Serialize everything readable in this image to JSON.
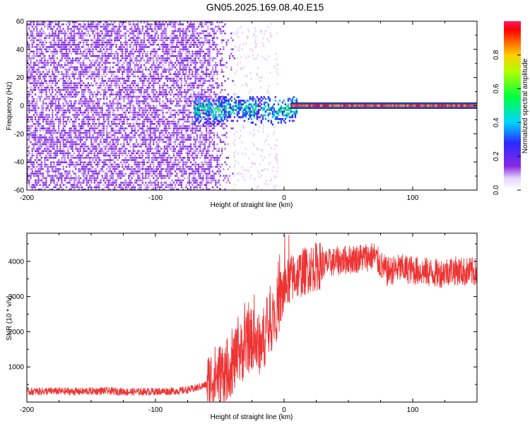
{
  "title": "GN05.2025.169.08.40.E15",
  "chart_data": [
    {
      "type": "heatmap",
      "xlabel": "Height of straight line (km)",
      "ylabel": "Frequency (Hz)",
      "xlim": [
        -200,
        150
      ],
      "ylim": [
        -60,
        60
      ],
      "xticks": [
        -200,
        -100,
        0,
        100
      ],
      "yticks": [
        -60,
        -40,
        -20,
        0,
        20,
        40,
        60
      ],
      "colorbar": {
        "label": "Normalized spectral amplitude",
        "range": [
          0.0,
          1.0
        ],
        "ticks": [
          0.0,
          0.2,
          0.4,
          0.6,
          0.8
        ]
      },
      "regions": [
        {
          "x_range": [
            -200,
            -40
          ],
          "y_range": [
            -60,
            60
          ],
          "amplitude": 0.1,
          "pattern": "scattered noise"
        },
        {
          "x_range": [
            -70,
            10
          ],
          "y_range": [
            -12,
            6
          ],
          "amplitude": 0.4,
          "pattern": "onset band"
        },
        {
          "x_range": [
            5,
            150
          ],
          "y_range": [
            -1.5,
            1.5
          ],
          "amplitude": 0.95,
          "pattern": "continuous line at 0 Hz"
        }
      ],
      "colors": {
        "low": "#7b00e6",
        "mid": "#00ff66",
        "high": "#ff0000"
      }
    },
    {
      "type": "line",
      "xlabel": "Height of straight line (km)",
      "ylabel": "SNR (10 * v/v)",
      "xlim": [
        -200,
        150
      ],
      "ylim": [
        0,
        4800
      ],
      "xticks": [
        -200,
        -100,
        0,
        100
      ],
      "yticks": [
        1000,
        2000,
        3000,
        4000
      ],
      "series": [
        {
          "color": "#ee3333",
          "x": [
            -200,
            -180,
            -160,
            -140,
            -120,
            -100,
            -80,
            -70,
            -60,
            -55,
            -50,
            -45,
            -40,
            -35,
            -30,
            -25,
            -20,
            -15,
            -10,
            -5,
            0,
            5,
            10,
            15,
            20,
            30,
            40,
            50,
            60,
            70,
            75,
            80,
            90,
            100,
            110,
            120,
            130,
            140,
            150
          ],
          "values": [
            300,
            310,
            300,
            320,
            290,
            300,
            320,
            380,
            500,
            700,
            800,
            900,
            1100,
            1300,
            1600,
            1800,
            1600,
            1900,
            2300,
            2700,
            3200,
            3500,
            3600,
            3700,
            3800,
            3900,
            4000,
            4050,
            4100,
            4150,
            3900,
            3700,
            3800,
            3750,
            3700,
            3650,
            3750,
            3700,
            3700
          ]
        }
      ]
    }
  ]
}
